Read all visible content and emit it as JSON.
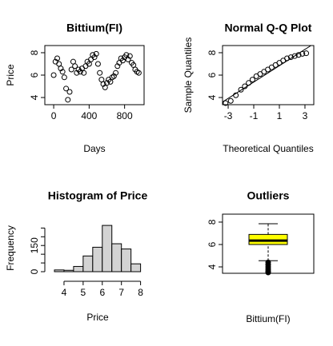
{
  "chart_data": [
    {
      "type": "scatter",
      "title": "Bittium(FI)",
      "xlabel": "Days",
      "ylabel": "Price",
      "x": [
        0,
        20,
        40,
        60,
        80,
        100,
        120,
        140,
        160,
        180,
        200,
        220,
        240,
        260,
        280,
        300,
        320,
        340,
        360,
        380,
        400,
        420,
        440,
        460,
        480,
        500,
        520,
        540,
        560,
        580,
        600,
        620,
        640,
        660,
        680,
        700,
        720,
        740,
        760,
        780,
        800,
        820,
        840,
        860,
        880,
        900,
        920,
        940,
        960
      ],
      "values": [
        6.0,
        7.2,
        7.5,
        7.0,
        6.6,
        6.3,
        5.8,
        4.8,
        3.8,
        4.5,
        6.5,
        7.2,
        6.8,
        6.2,
        6.5,
        6.3,
        6.6,
        6.2,
        6.8,
        7.2,
        7.0,
        7.4,
        7.8,
        7.6,
        7.9,
        7.0,
        6.2,
        5.6,
        5.2,
        4.9,
        5.3,
        5.6,
        5.4,
        5.8,
        5.9,
        6.2,
        6.8,
        7.1,
        7.5,
        7.3,
        7.6,
        7.8,
        7.4,
        7.7,
        7.1,
        6.9,
        6.5,
        6.3,
        6.2
      ],
      "color": "#000000",
      "xlim": [
        -100,
        1020
      ],
      "xticks": [
        0,
        400,
        800
      ],
      "ylim": [
        3.36,
        8.64
      ],
      "yticks": [
        4,
        6,
        8
      ]
    },
    {
      "type": "qq",
      "title": "Normal Q-Q Plot",
      "xlabel": "Theoretical Quantiles",
      "ylabel": "Sample Quantiles",
      "x": [
        -3.2,
        -2.8,
        -2.4,
        -2.0,
        -1.7,
        -1.4,
        -1.1,
        -0.8,
        -0.5,
        -0.2,
        0.1,
        0.4,
        0.7,
        1.0,
        1.3,
        1.6,
        1.9,
        2.2,
        2.5,
        2.8,
        3.1
      ],
      "values": [
        3.5,
        3.7,
        4.2,
        4.7,
        5.0,
        5.3,
        5.6,
        5.9,
        6.1,
        6.3,
        6.5,
        6.7,
        6.9,
        7.1,
        7.3,
        7.5,
        7.6,
        7.7,
        7.8,
        7.9,
        7.95
      ],
      "reference_line": {
        "x": [
          -3.44,
          3.69
        ],
        "y": [
          3.6,
          8.8
        ]
      },
      "color": "#000000",
      "xlim": [
        -3.44,
        3.69
      ],
      "xticks": [
        -3,
        -1,
        1,
        3
      ],
      "ylim": [
        3.36,
        8.64
      ],
      "yticks": [
        4,
        6,
        8
      ]
    },
    {
      "type": "histogram",
      "title": "Histogram of Price",
      "xlabel": "Price",
      "ylabel": "Frequency",
      "bins": [
        3.5,
        4,
        4.5,
        5,
        5.5,
        6,
        6.5,
        7,
        7.5,
        8
      ],
      "values": [
        10,
        8,
        30,
        90,
        140,
        265,
        160,
        130,
        45
      ],
      "color": "#d3d3d3",
      "xlim": [
        3.5,
        8.1
      ],
      "xticks": [
        4,
        5,
        6,
        7,
        8
      ],
      "ylim": [
        0,
        270
      ],
      "yticks": [
        0,
        150
      ],
      "yticks_minor": [
        50,
        100,
        200,
        250
      ]
    },
    {
      "type": "box",
      "title": "Outliers",
      "categories": [
        "Bittium(FI)"
      ],
      "whisker_low": 4.55,
      "q1": 6.0,
      "median": 6.35,
      "q3": 6.9,
      "whisker_high": 7.85,
      "outliers": [
        4.4,
        4.2,
        4.0,
        3.8,
        3.6,
        3.5
      ],
      "color": "#ffff00",
      "ylim": [
        3.43,
        8.71
      ],
      "yticks": [
        4,
        6,
        8
      ]
    }
  ]
}
